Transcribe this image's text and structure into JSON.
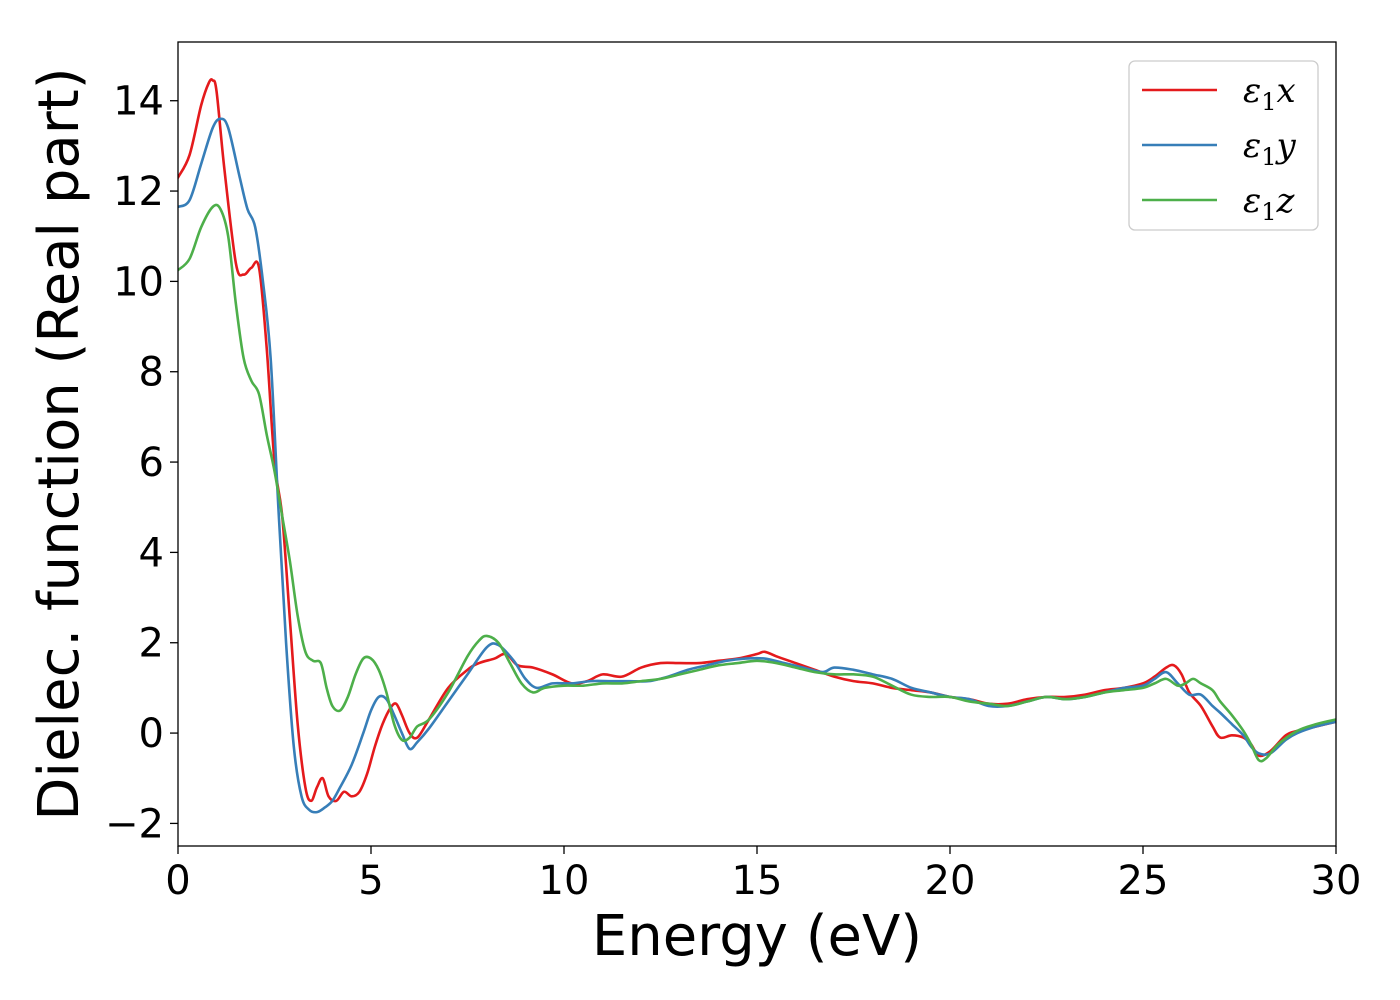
{
  "chart_data": {
    "type": "line",
    "title": "",
    "xlabel": "Energy (eV)",
    "ylabel": "Dielec. function (Real part)",
    "xlim": [
      0,
      30
    ],
    "ylim": [
      -2.5,
      15.3
    ],
    "xticks": [
      0,
      5,
      10,
      15,
      20,
      25,
      30
    ],
    "yticks": [
      -2,
      0,
      2,
      4,
      6,
      8,
      10,
      12,
      14
    ],
    "xtick_labels": [
      "0",
      "5",
      "10",
      "15",
      "20",
      "25",
      "30"
    ],
    "ytick_labels": [
      "−2",
      "0",
      "2",
      "4",
      "6",
      "8",
      "10",
      "12",
      "14"
    ],
    "grid": false,
    "legend_position": "top-right",
    "series": [
      {
        "name": "ε₁x",
        "legend_main": "ε",
        "legend_sub": "1",
        "legend_suffix": "x",
        "color": "#e41a1c",
        "x": [
          0,
          0.3,
          0.6,
          0.8,
          0.9,
          1.0,
          1.2,
          1.5,
          1.7,
          1.9,
          2.1,
          2.3,
          2.5,
          2.7,
          2.9,
          3.1,
          3.3,
          3.45,
          3.6,
          3.75,
          3.9,
          4.1,
          4.3,
          4.5,
          4.7,
          4.9,
          5.1,
          5.3,
          5.5,
          5.65,
          5.8,
          6.0,
          6.2,
          6.5,
          7.0,
          7.5,
          7.8,
          8.2,
          8.5,
          8.8,
          9.2,
          9.7,
          10.2,
          10.6,
          11.0,
          11.5,
          12.0,
          12.5,
          13.0,
          13.5,
          14.0,
          14.5,
          15.0,
          15.2,
          15.5,
          16.0,
          16.5,
          17.0,
          17.5,
          18.0,
          18.5,
          19.0,
          19.5,
          20.0,
          20.5,
          21.0,
          21.5,
          22.0,
          22.5,
          23.0,
          23.5,
          24.0,
          24.5,
          25.0,
          25.3,
          25.6,
          25.8,
          26.0,
          26.2,
          26.5,
          26.8,
          27.0,
          27.3,
          27.6,
          27.8,
          28.0,
          28.3,
          28.7,
          29.0,
          29.5,
          30.0
        ],
        "y": [
          12.3,
          12.8,
          13.9,
          14.4,
          14.45,
          14.2,
          12.5,
          10.4,
          10.15,
          10.3,
          10.3,
          8.5,
          6.0,
          4.8,
          2.5,
          0.2,
          -1.2,
          -1.5,
          -1.2,
          -1.0,
          -1.4,
          -1.5,
          -1.3,
          -1.4,
          -1.3,
          -0.9,
          -0.3,
          0.2,
          0.55,
          0.65,
          0.4,
          0.0,
          -0.1,
          0.3,
          1.0,
          1.4,
          1.55,
          1.65,
          1.75,
          1.5,
          1.45,
          1.3,
          1.1,
          1.15,
          1.3,
          1.25,
          1.45,
          1.55,
          1.55,
          1.55,
          1.6,
          1.65,
          1.75,
          1.8,
          1.7,
          1.55,
          1.4,
          1.25,
          1.15,
          1.1,
          1.0,
          0.95,
          0.9,
          0.8,
          0.75,
          0.65,
          0.65,
          0.75,
          0.8,
          0.8,
          0.85,
          0.95,
          1.0,
          1.1,
          1.25,
          1.45,
          1.5,
          1.3,
          0.9,
          0.6,
          0.15,
          -0.1,
          -0.05,
          -0.1,
          -0.25,
          -0.5,
          -0.4,
          -0.05,
          0.05,
          0.15,
          0.25
        ]
      },
      {
        "name": "ε₁y",
        "legend_main": "ε",
        "legend_sub": "1",
        "legend_suffix": "y",
        "color": "#377eb8",
        "x": [
          0,
          0.3,
          0.6,
          0.9,
          1.1,
          1.3,
          1.6,
          1.8,
          2.0,
          2.2,
          2.4,
          2.6,
          2.8,
          3.0,
          3.2,
          3.4,
          3.6,
          3.8,
          4.0,
          4.2,
          4.5,
          4.8,
          5.0,
          5.2,
          5.4,
          5.6,
          5.8,
          6.0,
          6.2,
          6.5,
          7.0,
          7.5,
          8.0,
          8.3,
          8.7,
          9.0,
          9.3,
          9.7,
          10.2,
          10.7,
          11.2,
          11.7,
          12.2,
          12.7,
          13.2,
          13.7,
          14.2,
          14.7,
          15.2,
          15.7,
          16.2,
          16.7,
          17.0,
          17.5,
          18.0,
          18.5,
          19.0,
          19.5,
          20.0,
          20.5,
          21.0,
          21.5,
          22.0,
          22.5,
          23.0,
          23.5,
          24.0,
          24.5,
          25.0,
          25.3,
          25.6,
          25.9,
          26.2,
          26.5,
          26.8,
          27.0,
          27.3,
          27.6,
          27.8,
          28.0,
          28.3,
          28.7,
          29.0,
          29.5,
          30.0
        ],
        "y": [
          11.65,
          11.8,
          12.6,
          13.4,
          13.6,
          13.4,
          12.3,
          11.6,
          11.2,
          10.0,
          8.3,
          5.0,
          2.0,
          -0.3,
          -1.4,
          -1.7,
          -1.75,
          -1.65,
          -1.5,
          -1.2,
          -0.7,
          0.0,
          0.5,
          0.8,
          0.75,
          0.4,
          0.0,
          -0.35,
          -0.2,
          0.1,
          0.7,
          1.3,
          1.9,
          1.95,
          1.6,
          1.2,
          1.0,
          1.1,
          1.1,
          1.15,
          1.15,
          1.15,
          1.15,
          1.25,
          1.4,
          1.5,
          1.6,
          1.65,
          1.65,
          1.55,
          1.45,
          1.35,
          1.45,
          1.4,
          1.3,
          1.2,
          1.0,
          0.9,
          0.8,
          0.75,
          0.6,
          0.6,
          0.7,
          0.8,
          0.75,
          0.8,
          0.9,
          1.0,
          1.05,
          1.2,
          1.35,
          1.1,
          0.85,
          0.85,
          0.6,
          0.45,
          0.2,
          -0.05,
          -0.3,
          -0.45,
          -0.45,
          -0.15,
          0.0,
          0.15,
          0.25
        ]
      },
      {
        "name": "ε₁z",
        "legend_main": "ε",
        "legend_sub": "1",
        "legend_suffix": "z",
        "color": "#4daf4a",
        "x": [
          0,
          0.3,
          0.6,
          0.9,
          1.1,
          1.3,
          1.5,
          1.7,
          1.9,
          2.1,
          2.3,
          2.5,
          2.7,
          2.9,
          3.1,
          3.3,
          3.5,
          3.7,
          3.85,
          4.0,
          4.2,
          4.4,
          4.6,
          4.8,
          5.0,
          5.2,
          5.4,
          5.6,
          5.8,
          6.0,
          6.2,
          6.5,
          7.0,
          7.5,
          7.8,
          8.0,
          8.3,
          8.6,
          8.9,
          9.2,
          9.5,
          10.0,
          10.5,
          11.0,
          11.5,
          12.0,
          12.5,
          13.0,
          13.5,
          14.0,
          14.5,
          15.0,
          15.5,
          16.0,
          16.5,
          17.0,
          17.5,
          18.0,
          18.5,
          19.0,
          19.5,
          20.0,
          20.5,
          21.0,
          21.5,
          22.0,
          22.5,
          23.0,
          23.5,
          24.0,
          24.5,
          25.0,
          25.3,
          25.6,
          25.9,
          26.1,
          26.3,
          26.5,
          26.8,
          27.0,
          27.3,
          27.6,
          27.8,
          28.0,
          28.2,
          28.5,
          29.0,
          29.5,
          30.0
        ],
        "y": [
          10.25,
          10.5,
          11.2,
          11.65,
          11.6,
          11.0,
          9.5,
          8.3,
          7.8,
          7.5,
          6.6,
          5.8,
          4.8,
          3.8,
          2.6,
          1.8,
          1.6,
          1.55,
          1.0,
          0.6,
          0.5,
          0.8,
          1.3,
          1.65,
          1.65,
          1.4,
          0.9,
          0.2,
          -0.15,
          -0.1,
          0.15,
          0.3,
          0.9,
          1.7,
          2.05,
          2.15,
          2.0,
          1.55,
          1.1,
          0.9,
          1.0,
          1.05,
          1.05,
          1.1,
          1.1,
          1.15,
          1.2,
          1.3,
          1.4,
          1.5,
          1.55,
          1.6,
          1.55,
          1.45,
          1.35,
          1.3,
          1.3,
          1.25,
          1.05,
          0.85,
          0.8,
          0.8,
          0.7,
          0.65,
          0.6,
          0.7,
          0.8,
          0.75,
          0.8,
          0.9,
          0.95,
          1.0,
          1.1,
          1.2,
          1.05,
          1.1,
          1.2,
          1.1,
          0.95,
          0.7,
          0.4,
          0.05,
          -0.25,
          -0.6,
          -0.55,
          -0.25,
          0.05,
          0.2,
          0.3
        ]
      }
    ]
  }
}
